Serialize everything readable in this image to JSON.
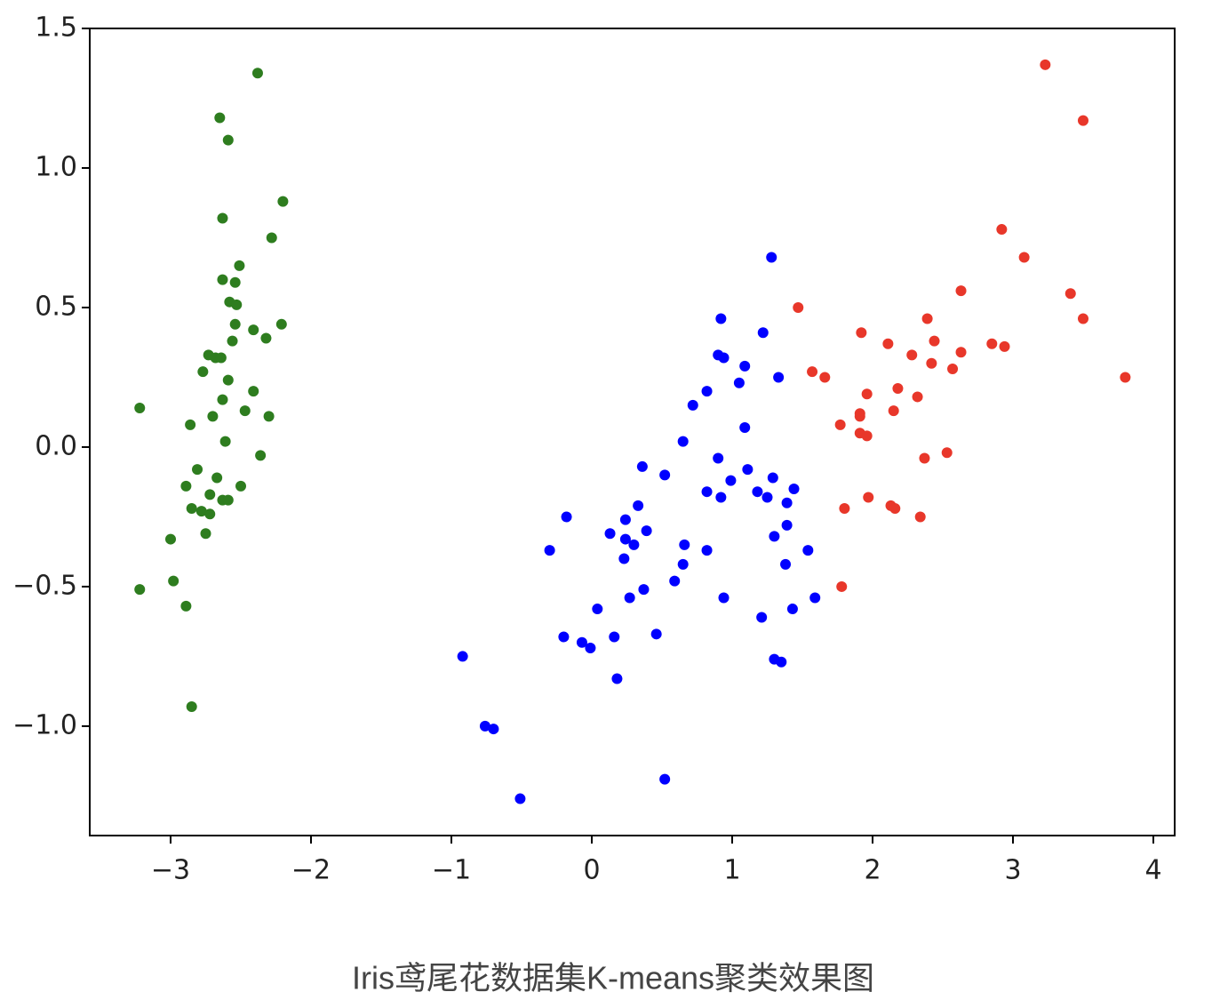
{
  "chart_data": {
    "type": "scatter",
    "caption": "Iris鸢尾花数据集K-means聚类效果图",
    "xlim": [
      -3.576,
      4.152
    ],
    "ylim": [
      -1.392,
      1.5
    ],
    "xticks": [
      {
        "value": -3,
        "label": "−3"
      },
      {
        "value": -2,
        "label": "−2"
      },
      {
        "value": -1,
        "label": "−1"
      },
      0,
      1,
      2,
      3,
      4
    ],
    "yticks": [
      {
        "value": -1,
        "label": "−1.0"
      },
      {
        "value": -0.5,
        "label": "−0.5"
      },
      {
        "value": 0,
        "label": "0.0"
      },
      0.5,
      {
        "value": 1,
        "label": "1.0"
      },
      1.5
    ],
    "series": [
      {
        "color": "#2e7d1f",
        "x": [
          -2.38,
          -2.65,
          -2.59,
          -2.63,
          -2.2,
          -2.28,
          -2.51,
          -2.63,
          -2.54,
          -2.58,
          -2.53,
          -2.21,
          -2.54,
          -2.41,
          -2.32,
          -2.56,
          -2.73,
          -2.68,
          -2.64,
          -2.77,
          -2.59,
          -2.41,
          -2.63,
          -3.22,
          -2.47,
          -2.7,
          -2.3,
          -2.86,
          -2.61,
          -2.36,
          -2.81,
          -2.67,
          -2.5,
          -2.89,
          -2.72,
          -2.63,
          -2.59,
          -2.85,
          -2.78,
          -2.72,
          -2.75,
          -3.0,
          -2.98,
          -3.22,
          -2.89,
          -2.85
        ],
        "y": [
          1.34,
          1.18,
          1.1,
          0.82,
          0.88,
          0.75,
          0.65,
          0.6,
          0.59,
          0.52,
          0.51,
          0.44,
          0.44,
          0.42,
          0.39,
          0.38,
          0.33,
          0.32,
          0.32,
          0.27,
          0.24,
          0.2,
          0.17,
          0.14,
          0.13,
          0.11,
          0.11,
          0.08,
          0.02,
          -0.03,
          -0.08,
          -0.11,
          -0.14,
          -0.14,
          -0.17,
          -0.19,
          -0.19,
          -0.22,
          -0.23,
          -0.24,
          -0.31,
          -0.33,
          -0.48,
          -0.51,
          -0.57,
          -0.93
        ]
      },
      {
        "color": "#0000ff",
        "x": [
          1.28,
          0.92,
          1.22,
          0.9,
          0.94,
          1.09,
          1.33,
          1.05,
          0.82,
          0.72,
          1.09,
          0.65,
          0.9,
          0.36,
          0.52,
          0.99,
          1.11,
          1.29,
          1.44,
          0.82,
          1.18,
          1.25,
          0.92,
          1.39,
          -0.18,
          0.24,
          0.33,
          1.39,
          0.39,
          0.13,
          0.24,
          0.3,
          1.3,
          -0.3,
          0.82,
          1.54,
          0.66,
          0.23,
          0.65,
          1.38,
          0.37,
          0.59,
          0.94,
          1.59,
          0.27,
          0.04,
          1.43,
          1.21,
          -0.2,
          0.16,
          0.46,
          -0.07,
          -0.01,
          1.3,
          1.35,
          -0.92,
          0.18,
          -0.76,
          -0.7,
          0.52,
          -0.51
        ],
        "y": [
          0.68,
          0.46,
          0.41,
          0.33,
          0.32,
          0.29,
          0.25,
          0.23,
          0.2,
          0.15,
          0.07,
          0.02,
          -0.04,
          -0.07,
          -0.1,
          -0.12,
          -0.08,
          -0.11,
          -0.15,
          -0.16,
          -0.16,
          -0.18,
          -0.18,
          -0.2,
          -0.25,
          -0.26,
          -0.21,
          -0.28,
          -0.3,
          -0.31,
          -0.33,
          -0.35,
          -0.32,
          -0.37,
          -0.37,
          -0.37,
          -0.35,
          -0.4,
          -0.42,
          -0.42,
          -0.51,
          -0.48,
          -0.54,
          -0.54,
          -0.54,
          -0.58,
          -0.58,
          -0.61,
          -0.68,
          -0.68,
          -0.67,
          -0.7,
          -0.72,
          -0.76,
          -0.77,
          -0.75,
          -0.83,
          -1.0,
          -1.01,
          -1.19,
          -1.26
        ]
      },
      {
        "color": "#e8372a",
        "x": [
          3.23,
          3.5,
          2.92,
          3.08,
          3.41,
          2.63,
          1.47,
          2.39,
          3.5,
          1.92,
          2.11,
          2.44,
          2.85,
          2.94,
          2.28,
          2.63,
          2.42,
          2.57,
          1.57,
          1.66,
          2.18,
          1.96,
          2.32,
          3.8,
          2.15,
          1.91,
          1.91,
          1.77,
          1.91,
          1.96,
          2.37,
          2.53,
          1.97,
          1.8,
          2.13,
          2.16,
          2.34,
          1.78
        ],
        "y": [
          1.37,
          1.17,
          0.78,
          0.68,
          0.55,
          0.56,
          0.5,
          0.46,
          0.46,
          0.41,
          0.37,
          0.38,
          0.37,
          0.36,
          0.33,
          0.34,
          0.3,
          0.28,
          0.27,
          0.25,
          0.21,
          0.19,
          0.18,
          0.25,
          0.13,
          0.12,
          0.11,
          0.08,
          0.05,
          0.04,
          -0.04,
          -0.02,
          -0.18,
          -0.22,
          -0.21,
          -0.22,
          -0.25,
          -0.5
        ]
      }
    ]
  }
}
